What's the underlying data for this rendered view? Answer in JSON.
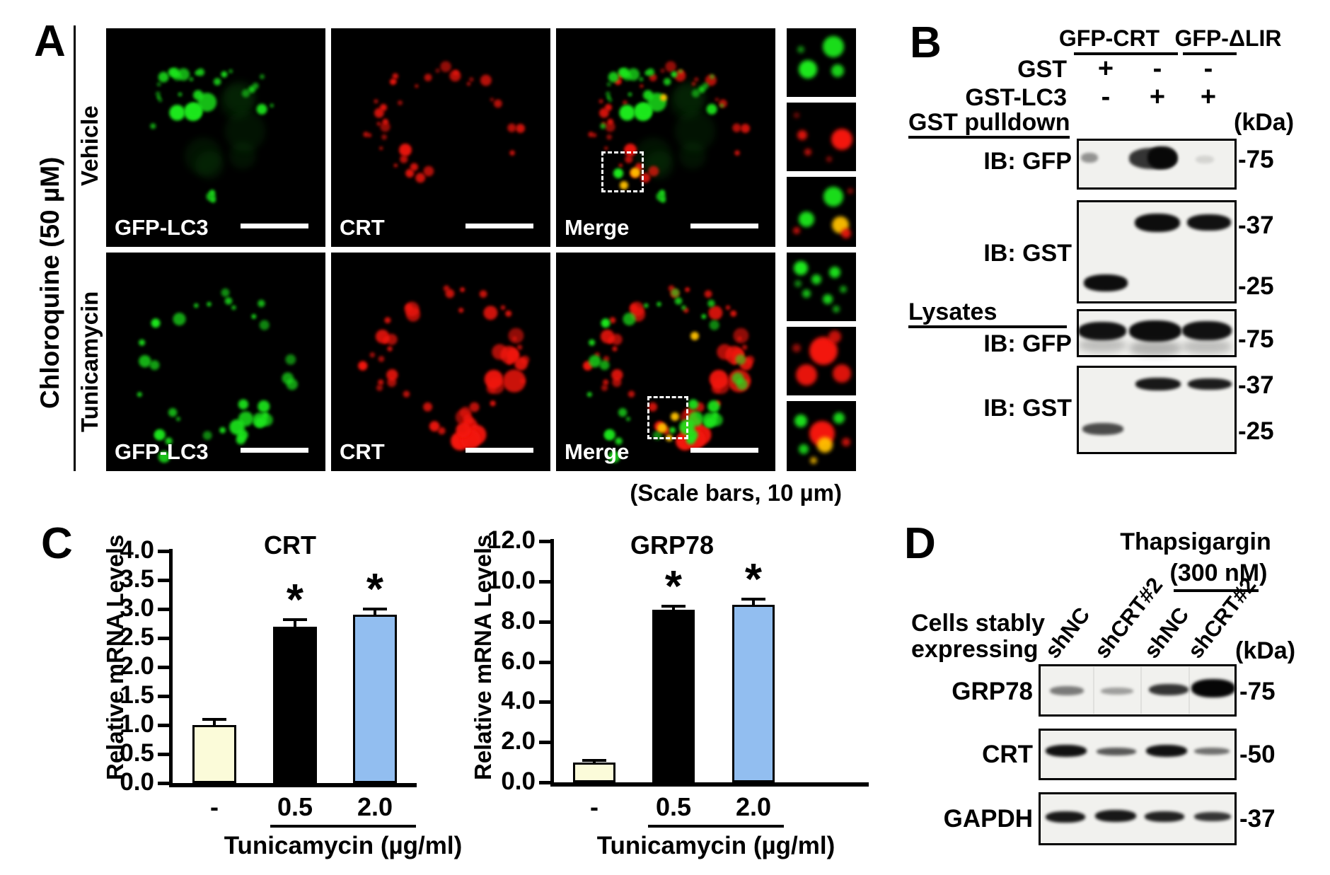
{
  "figure": {
    "panel_a": {
      "label": "A",
      "treatment_label": "Chloroquine (50 µM)",
      "rows": [
        {
          "label": "Vehicle"
        },
        {
          "label": "Tunicamycin"
        }
      ],
      "channels": [
        "GFP-LC3",
        "CRT",
        "Merge"
      ],
      "scale_note": "(Scale bars, 10 µm)",
      "colors": {
        "gfp_green": "#1fe81f",
        "crt_red": "#f31208",
        "overlap_yellow": "#ffc103"
      }
    },
    "panel_b": {
      "label": "B",
      "group_headers": [
        "GFP-CRT",
        "GFP-ΔLIR"
      ],
      "condition_rows": [
        {
          "label": "GST",
          "values": [
            "+",
            "-",
            "-"
          ]
        },
        {
          "label": "GST-LC3",
          "values": [
            "-",
            "+",
            "+"
          ]
        }
      ],
      "kda_label": "(kDa)",
      "sections": [
        {
          "title": "GST pulldown",
          "blots": [
            {
              "antibody": "IB: GFP",
              "markers": [
                "-75"
              ],
              "band_pattern": {
                "75": [
                  0.3,
                  1.0,
                  0.1
                ]
              }
            },
            {
              "antibody": "IB: GST",
              "markers": [
                "-37",
                "-25"
              ],
              "band_pattern": {
                "37": [
                  0,
                  1.0,
                  1.0
                ],
                "25": [
                  1.0,
                  0,
                  0
                ]
              }
            }
          ]
        },
        {
          "title": "Lysates",
          "blots": [
            {
              "antibody": "IB: GFP",
              "markers": [
                "-75"
              ],
              "band_pattern": {
                "75": [
                  1.0,
                  1.0,
                  1.0
                ]
              }
            },
            {
              "antibody": "IB: GST",
              "markers": [
                "-37",
                "-25"
              ],
              "band_pattern": {
                "37": [
                  0,
                  0.95,
                  0.9
                ],
                "25": [
                  0.7,
                  0,
                  0
                ]
              }
            }
          ]
        }
      ]
    },
    "panel_c": {
      "label": "C"
    },
    "panel_d": {
      "label": "D",
      "treatment": "Thapsigargin",
      "dose": "(300 nM)",
      "cells_label_line1": "Cells stably",
      "cells_label_line2": "expressing",
      "lanes": [
        "shNC",
        "shCRT#2",
        "shNC",
        "shCRT#2"
      ],
      "kda_label": "(kDa)",
      "blots": [
        {
          "target": "GRP78",
          "marker": "-75",
          "band_pattern": [
            0.5,
            0.35,
            0.8,
            1.0
          ]
        },
        {
          "target": "CRT",
          "marker": "-50",
          "band_pattern": [
            0.95,
            0.65,
            0.95,
            0.55
          ]
        },
        {
          "target": "GAPDH",
          "marker": "-37",
          "band_pattern": [
            0.92,
            0.92,
            0.88,
            0.8
          ]
        }
      ]
    }
  },
  "chart_data": [
    {
      "type": "bar",
      "title": "CRT",
      "ylabel": "Relative mRNA Levels",
      "xlabel": "Tunicamycin (µg/ml)",
      "ylim": [
        0,
        4
      ],
      "ytick_step": 0.5,
      "yticks": [
        "0.0",
        "0.5",
        "1.0",
        "1.5",
        "2.0",
        "2.5",
        "3.0",
        "3.5",
        "4.0"
      ],
      "categories": [
        "-",
        "0.5",
        "2.0"
      ],
      "values": [
        1.0,
        2.7,
        2.9
      ],
      "errors": [
        0.1,
        0.12,
        0.1
      ],
      "significance": [
        "",
        "*",
        "*"
      ],
      "bar_colors": [
        "#FBFBD9",
        "#000000",
        "#92BEF0"
      ],
      "grid": "off",
      "legend": "none"
    },
    {
      "type": "bar",
      "title": "GRP78",
      "ylabel": "Relative mRNA Levels",
      "xlabel": "Tunicamycin (µg/ml)",
      "ylim": [
        0,
        12
      ],
      "ytick_step": 2,
      "yticks": [
        "0.0",
        "2.0",
        "4.0",
        "6.0",
        "8.0",
        "10.0",
        "12.0"
      ],
      "categories": [
        "-",
        "0.5",
        "2.0"
      ],
      "values": [
        1.0,
        8.6,
        8.85
      ],
      "errors": [
        0.1,
        0.18,
        0.25
      ],
      "significance": [
        "",
        "*",
        "*"
      ],
      "bar_colors": [
        "#FBFBD9",
        "#000000",
        "#92BEF0"
      ],
      "grid": "off",
      "legend": "none"
    }
  ]
}
